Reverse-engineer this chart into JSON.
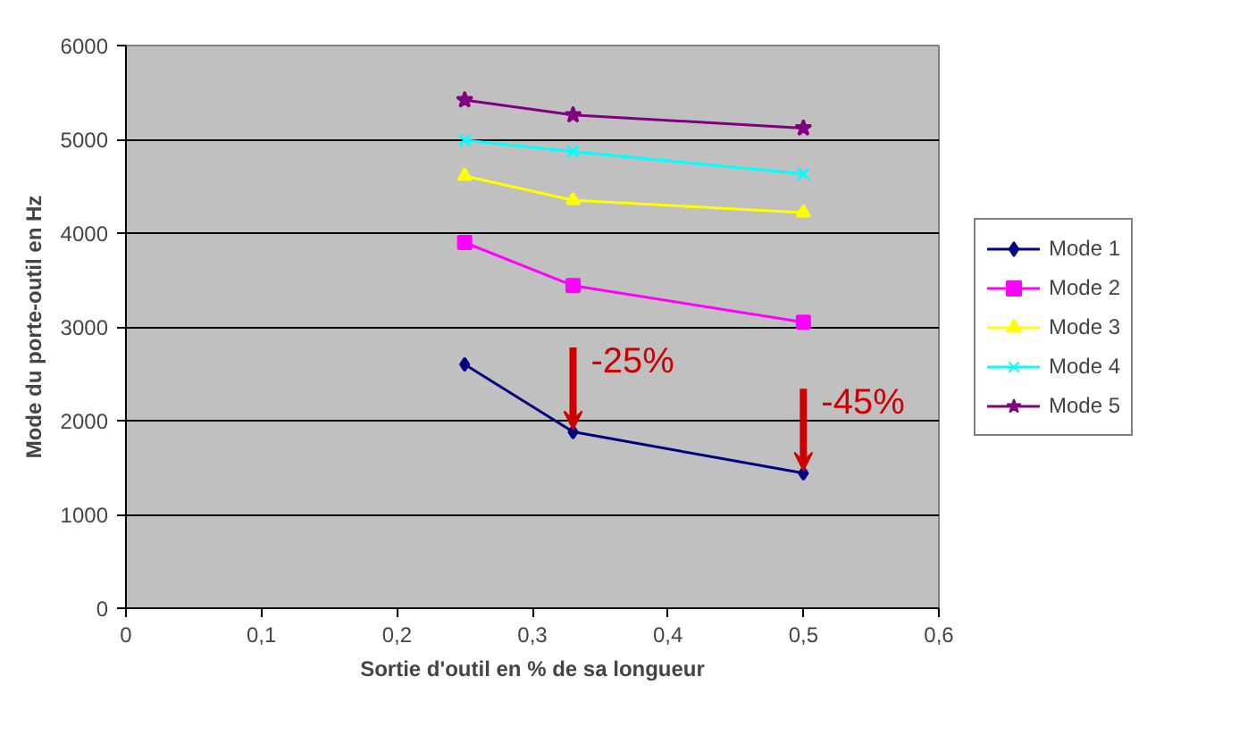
{
  "chart_data": {
    "type": "line",
    "xlabel": "Sortie d'outil en % de sa longueur",
    "ylabel": "Mode du porte-outil en Hz",
    "x": [
      0.25,
      0.33,
      0.5
    ],
    "series": [
      {
        "name": "Mode 1",
        "color": "#000080",
        "marker": "diamond",
        "values": [
          2600,
          1880,
          1440
        ]
      },
      {
        "name": "Mode 2",
        "color": "#ff00ff",
        "marker": "square",
        "values": [
          3900,
          3440,
          3050
        ]
      },
      {
        "name": "Mode 3",
        "color": "#ffff00",
        "marker": "triangle",
        "values": [
          4610,
          4350,
          4220
        ]
      },
      {
        "name": "Mode 4",
        "color": "#00ffff",
        "marker": "cross",
        "values": [
          4990,
          4870,
          4630
        ]
      },
      {
        "name": "Mode 5",
        "color": "#800080",
        "marker": "star",
        "values": [
          5420,
          5260,
          5120
        ]
      }
    ],
    "xlim": [
      0,
      0.6
    ],
    "xticks": [
      {
        "value": 0,
        "label": "0"
      },
      {
        "value": 0.1,
        "label": "0,1"
      },
      {
        "value": 0.2,
        "label": "0,2"
      },
      {
        "value": 0.3,
        "label": "0,3"
      },
      {
        "value": 0.4,
        "label": "0,4"
      },
      {
        "value": 0.5,
        "label": "0,5"
      },
      {
        "value": 0.6,
        "label": "0,6"
      }
    ],
    "ylim": [
      0,
      6000
    ],
    "yticks": [
      0,
      1000,
      2000,
      3000,
      4000,
      5000,
      6000
    ],
    "annotations": [
      {
        "text": "-25%",
        "x": 0.33,
        "y": 1880
      },
      {
        "text": "-45%",
        "x": 0.5,
        "y": 1440
      }
    ],
    "grid": "y",
    "legend": "right",
    "line_style": "solid"
  }
}
